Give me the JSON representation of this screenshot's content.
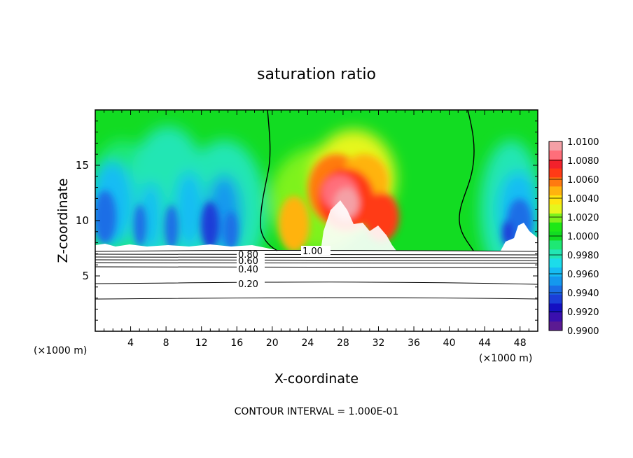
{
  "chart_data": {
    "type": "heatmap",
    "title": "saturation ratio",
    "xlabel": "X-coordinate",
    "ylabel": "Z-coordinate",
    "x_unit_left": "(×1000 m)",
    "x_unit_right": "(×1000 m)",
    "xlim": [
      0,
      50
    ],
    "ylim": [
      0,
      20
    ],
    "x_ticks": [
      "4",
      "8",
      "12",
      "16",
      "20",
      "24",
      "28",
      "32",
      "36",
      "40",
      "44",
      "48"
    ],
    "y_ticks": [
      "5",
      "10",
      "15"
    ],
    "colorbar": {
      "labels": [
        "1.0100",
        "1.0080",
        "1.0060",
        "1.0040",
        "1.0020",
        "1.0000",
        "0.9980",
        "0.9960",
        "0.9940",
        "0.9920",
        "0.9900"
      ],
      "colors": [
        "#f4a0a6",
        "#ff6e7a",
        "#f2212b",
        "#ff3a16",
        "#ff7a10",
        "#ffb30e",
        "#ffe510",
        "#e6f61e",
        "#7ef21c",
        "#1ee816",
        "#12dc22",
        "#1ee874",
        "#22e6b4",
        "#1cdcea",
        "#16bcf4",
        "#1498ee",
        "#1a6ee6",
        "#1b3ed8",
        "#1410c2",
        "#3a0fae",
        "#5b1a92"
      ]
    },
    "contour_levels": [
      "0.80",
      "0.60",
      "0.40",
      "0.20",
      "1.00"
    ],
    "colors": {
      "saturated": "#12dc22",
      "subsat_low": "#1b3ed8",
      "supersat": "#f2212b",
      "cloud_white": "#ffffff"
    }
  },
  "footer": {
    "contour_interval": "CONTOUR INTERVAL = 1.000E-01"
  }
}
